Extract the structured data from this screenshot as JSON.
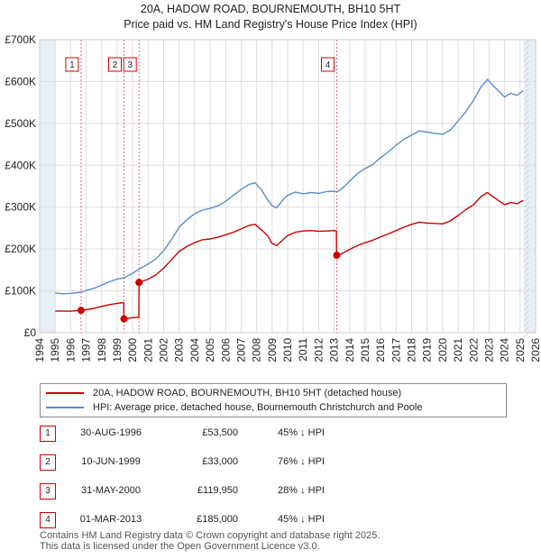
{
  "header": {
    "title_line1": "20A, HADOW ROAD, BOURNEMOUTH, BH10 5HT",
    "title_line2": "Price paid vs. HM Land Registry's House Price Index (HPI)"
  },
  "colors": {
    "price_line": "#cc0000",
    "hpi_line": "#5b8dc8",
    "grid": "#dddddd",
    "shade": "#e8eef7",
    "marker_border": "#cc0000"
  },
  "chart_data": {
    "type": "line",
    "title": "Price paid vs. HM Land Registry's House Price Index (HPI)",
    "xlim": [
      1994,
      2026
    ],
    "ylim": [
      0,
      700000
    ],
    "x_ticks": [
      "1994",
      "1995",
      "1996",
      "1997",
      "1998",
      "1999",
      "2000",
      "2001",
      "2002",
      "2003",
      "2004",
      "2005",
      "2006",
      "2007",
      "2008",
      "2009",
      "2010",
      "2011",
      "2012",
      "2013",
      "2014",
      "2015",
      "2016",
      "2017",
      "2018",
      "2019",
      "2020",
      "2021",
      "2022",
      "2023",
      "2024",
      "2025",
      "2026"
    ],
    "y_ticks": [
      {
        "value": 0,
        "label": "£0"
      },
      {
        "value": 100000,
        "label": "£100K"
      },
      {
        "value": 200000,
        "label": "£200K"
      },
      {
        "value": 300000,
        "label": "£300K"
      },
      {
        "value": 400000,
        "label": "£400K"
      },
      {
        "value": 500000,
        "label": "£500K"
      },
      {
        "value": 600000,
        "label": "£600K"
      },
      {
        "value": 700000,
        "label": "£700K"
      }
    ],
    "series": [
      {
        "name": "HPI: Average price, detached house, Bournemouth Christchurch and Poole",
        "points": [
          [
            1995.0,
            95000
          ],
          [
            1995.5,
            93000
          ],
          [
            1996.0,
            94000
          ],
          [
            1996.67,
            97000
          ],
          [
            1997.0,
            101000
          ],
          [
            1997.5,
            106000
          ],
          [
            1998.0,
            114000
          ],
          [
            1998.5,
            122000
          ],
          [
            1999.0,
            128000
          ],
          [
            1999.44,
            131000
          ],
          [
            2000.0,
            142000
          ],
          [
            2000.41,
            152000
          ],
          [
            2001.0,
            164000
          ],
          [
            2001.5,
            176000
          ],
          [
            2002.0,
            196000
          ],
          [
            2002.5,
            222000
          ],
          [
            2003.0,
            252000
          ],
          [
            2003.5,
            270000
          ],
          [
            2004.0,
            284000
          ],
          [
            2004.5,
            293000
          ],
          [
            2005.0,
            297000
          ],
          [
            2005.5,
            303000
          ],
          [
            2006.0,
            314000
          ],
          [
            2006.5,
            328000
          ],
          [
            2007.0,
            342000
          ],
          [
            2007.5,
            354000
          ],
          [
            2007.9,
            358000
          ],
          [
            2008.3,
            342000
          ],
          [
            2008.7,
            318000
          ],
          [
            2009.0,
            303000
          ],
          [
            2009.3,
            298000
          ],
          [
            2009.7,
            318000
          ],
          [
            2010.0,
            328000
          ],
          [
            2010.5,
            336000
          ],
          [
            2011.0,
            332000
          ],
          [
            2011.5,
            335000
          ],
          [
            2012.0,
            333000
          ],
          [
            2012.5,
            337000
          ],
          [
            2013.0,
            338000
          ],
          [
            2013.17,
            336000
          ],
          [
            2013.5,
            344000
          ],
          [
            2014.0,
            362000
          ],
          [
            2014.5,
            380000
          ],
          [
            2015.0,
            392000
          ],
          [
            2015.5,
            402000
          ],
          [
            2016.0,
            418000
          ],
          [
            2016.5,
            432000
          ],
          [
            2017.0,
            448000
          ],
          [
            2017.5,
            462000
          ],
          [
            2018.0,
            472000
          ],
          [
            2018.5,
            482000
          ],
          [
            2019.0,
            479000
          ],
          [
            2019.5,
            476000
          ],
          [
            2020.0,
            474000
          ],
          [
            2020.5,
            484000
          ],
          [
            2021.0,
            506000
          ],
          [
            2021.5,
            528000
          ],
          [
            2022.0,
            556000
          ],
          [
            2022.5,
            588000
          ],
          [
            2022.9,
            605000
          ],
          [
            2023.2,
            592000
          ],
          [
            2023.6,
            578000
          ],
          [
            2024.0,
            563000
          ],
          [
            2024.4,
            572000
          ],
          [
            2024.8,
            567000
          ],
          [
            2025.2,
            578000
          ]
        ]
      },
      {
        "name": "20A, HADOW ROAD, BOURNEMOUTH, BH10 5HT (detached house)",
        "points": [
          [
            1995.0,
            52000
          ],
          [
            1995.5,
            51500
          ],
          [
            1996.0,
            51500
          ],
          [
            1996.4,
            52500
          ],
          [
            1996.67,
            53500
          ],
          [
            1997.0,
            55000
          ],
          [
            1997.5,
            58000
          ],
          [
            1998.0,
            63000
          ],
          [
            1998.5,
            67000
          ],
          [
            1999.0,
            70000
          ],
          [
            1999.42,
            72000
          ],
          [
            1999.44,
            33000
          ],
          [
            1999.7,
            34000
          ],
          [
            2000.0,
            36000
          ],
          [
            2000.4,
            37000
          ],
          [
            2000.41,
            119950
          ],
          [
            2001.0,
            128000
          ],
          [
            2001.5,
            138000
          ],
          [
            2002.0,
            154000
          ],
          [
            2002.5,
            174000
          ],
          [
            2003.0,
            194000
          ],
          [
            2003.5,
            206000
          ],
          [
            2004.0,
            215000
          ],
          [
            2004.5,
            222000
          ],
          [
            2005.0,
            224000
          ],
          [
            2005.5,
            228000
          ],
          [
            2006.0,
            234000
          ],
          [
            2006.5,
            240000
          ],
          [
            2007.0,
            248000
          ],
          [
            2007.5,
            256000
          ],
          [
            2007.9,
            259000
          ],
          [
            2008.3,
            246000
          ],
          [
            2008.7,
            232000
          ],
          [
            2009.0,
            213000
          ],
          [
            2009.3,
            208000
          ],
          [
            2009.7,
            222000
          ],
          [
            2010.0,
            232000
          ],
          [
            2010.5,
            240000
          ],
          [
            2011.0,
            243000
          ],
          [
            2011.5,
            244000
          ],
          [
            2012.0,
            242000
          ],
          [
            2012.5,
            243000
          ],
          [
            2013.0,
            244000
          ],
          [
            2013.15,
            243000
          ],
          [
            2013.16,
            185000
          ],
          [
            2013.5,
            189000
          ],
          [
            2014.0,
            199000
          ],
          [
            2014.5,
            208000
          ],
          [
            2015.0,
            215000
          ],
          [
            2015.5,
            221000
          ],
          [
            2016.0,
            229000
          ],
          [
            2016.5,
            236000
          ],
          [
            2017.0,
            244000
          ],
          [
            2017.5,
            252000
          ],
          [
            2018.0,
            259000
          ],
          [
            2018.5,
            264000
          ],
          [
            2019.0,
            262000
          ],
          [
            2019.5,
            261000
          ],
          [
            2020.0,
            260000
          ],
          [
            2020.5,
            267000
          ],
          [
            2021.0,
            280000
          ],
          [
            2021.5,
            294000
          ],
          [
            2022.0,
            306000
          ],
          [
            2022.5,
            326000
          ],
          [
            2022.9,
            335000
          ],
          [
            2023.2,
            326000
          ],
          [
            2023.6,
            316000
          ],
          [
            2024.0,
            306000
          ],
          [
            2024.4,
            311000
          ],
          [
            2024.8,
            308000
          ],
          [
            2025.2,
            316000
          ]
        ]
      }
    ],
    "sales": [
      {
        "num": "1",
        "x": 1996.67,
        "price": 53500
      },
      {
        "num": "2",
        "x": 1999.44,
        "price": 33000
      },
      {
        "num": "3",
        "x": 2000.41,
        "price": 119950
      },
      {
        "num": "4",
        "x": 2013.17,
        "price": 185000
      }
    ],
    "shaded_ranges": [
      [
        1994,
        1995
      ],
      [
        2025.25,
        2026
      ]
    ],
    "legend_position": "below"
  },
  "legend": {
    "price_label": "20A, HADOW ROAD, BOURNEMOUTH, BH10 5HT (detached house)",
    "hpi_label": "HPI: Average price, detached house, Bournemouth Christchurch and Poole"
  },
  "sales_table": [
    {
      "num": "1",
      "date": "30-AUG-1996",
      "price": "£53,500",
      "hpi": "45% ↓ HPI"
    },
    {
      "num": "2",
      "date": "10-JUN-1999",
      "price": "£33,000",
      "hpi": "76% ↓ HPI"
    },
    {
      "num": "3",
      "date": "31-MAY-2000",
      "price": "£119,950",
      "hpi": "28% ↓ HPI"
    },
    {
      "num": "4",
      "date": "01-MAR-2013",
      "price": "£185,000",
      "hpi": "45% ↓ HPI"
    }
  ],
  "footer": {
    "line1": "Contains HM Land Registry data © Crown copyright and database right 2025.",
    "line2": "This data is licensed under the Open Government Licence v3.0."
  }
}
